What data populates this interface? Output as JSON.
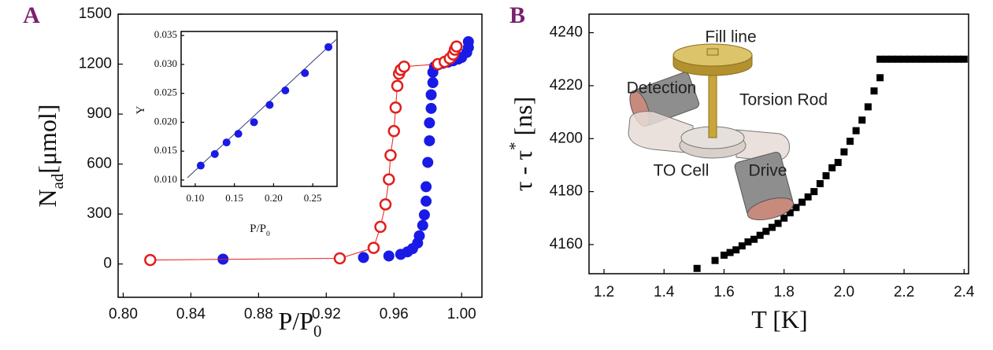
{
  "chart_data": [
    {
      "type": "scatter",
      "panel_label": "A",
      "xlabel_parts": [
        {
          "text": "P/P"
        },
        {
          "text": "0",
          "sub": true
        }
      ],
      "ylabel_parts": [
        {
          "text": "N"
        },
        {
          "text": "ad",
          "sub": true
        },
        {
          "text": "[μmol]"
        }
      ],
      "xlim": [
        0.797,
        1.012
      ],
      "ylim": [
        -200,
        1500
      ],
      "xticks": [
        {
          "value": 0.8,
          "label": "0.80"
        },
        0.84,
        0.88,
        0.92,
        0.96,
        {
          "value": 1,
          "label": "1.00"
        }
      ],
      "yticks": [
        0,
        300,
        600,
        900,
        1200,
        1500
      ],
      "series": [
        {
          "color": "#1a1ae6",
          "marker": "filled",
          "line": false,
          "x": [
            0.859,
            0.942,
            0.957,
            0.964,
            0.968,
            0.971,
            0.974,
            0.975,
            0.977,
            0.978,
            0.979,
            0.979,
            0.98,
            0.981,
            0.981,
            0.982,
            0.982,
            0.983,
            0.983,
            0.984,
            0.986,
            0.989,
            0.992,
            0.995,
            0.998,
            1.0,
            1.003,
            1.004,
            1.004
          ],
          "values": [
            29,
            39,
            48,
            58,
            73,
            92,
            126,
            169,
            232,
            295,
            377,
            464,
            610,
            740,
            847,
            934,
            1016,
            1089,
            1151,
            1185,
            1195,
            1205,
            1212,
            1220,
            1230,
            1240,
            1270,
            1300,
            1335
          ]
        },
        {
          "color": "#e0201c",
          "marker": "open",
          "line": true,
          "x": [
            0.816,
            0.928,
            0.948,
            0.952,
            0.955,
            0.957,
            0.958,
            0.96,
            0.961,
            0.962,
            0.963,
            0.964,
            0.966,
            0.986,
            0.99,
            0.993,
            0.995,
            0.996,
            0.997
          ],
          "values": [
            24,
            34,
            97,
            223,
            358,
            508,
            653,
            798,
            939,
            1069,
            1142,
            1166,
            1185,
            1200,
            1214,
            1234,
            1258,
            1287,
            1306
          ]
        }
      ]
    },
    {
      "type": "scatter",
      "xlabel_parts": [
        {
          "text": "P/P"
        },
        {
          "text": "0",
          "sub": true
        }
      ],
      "ylabel_parts": [
        {
          "text": "Y"
        }
      ],
      "xlim": [
        0.082,
        0.281
      ],
      "ylim": [
        0.0089,
        0.0357
      ],
      "xticks": [
        {
          "value": 0.1,
          "label": "0.10"
        },
        0.15,
        {
          "value": 0.2,
          "label": "0.20"
        },
        0.25
      ],
      "yticks": [
        {
          "value": 0.01,
          "label": "0.010"
        },
        {
          "value": 0.015,
          "label": "0.015"
        },
        {
          "value": 0.02,
          "label": "0.020"
        },
        {
          "value": 0.025,
          "label": "0.025"
        },
        {
          "value": 0.03,
          "label": "0.030"
        },
        {
          "value": 0.035,
          "label": "0.035"
        }
      ],
      "series": [
        {
          "color": "#333d7a",
          "marker": "none",
          "line": true,
          "x": [
            0.09,
            0.28
          ],
          "values": [
            0.0104,
            0.0343
          ]
        },
        {
          "color": "#1a1ae6",
          "marker": "filled",
          "line": false,
          "x": [
            0.107,
            0.125,
            0.14,
            0.155,
            0.175,
            0.195,
            0.215,
            0.24,
            0.27
          ],
          "values": [
            0.0125,
            0.0145,
            0.0165,
            0.018,
            0.02,
            0.023,
            0.0255,
            0.0285,
            0.033
          ]
        }
      ]
    },
    {
      "type": "scatter",
      "panel_label": "B",
      "xlabel_parts": [
        {
          "text": "T [K]"
        }
      ],
      "ylabel_parts": [
        {
          "text": "τ - τ"
        },
        {
          "text": "*",
          "sup": true
        },
        {
          "text": " [ns]"
        }
      ],
      "xlim": [
        1.15,
        2.415
      ],
      "ylim": [
        4149,
        4247
      ],
      "xticks": [
        1.2,
        1.4,
        1.6,
        1.8,
        {
          "value": 2,
          "label": "2.0"
        },
        2.2,
        2.4
      ],
      "yticks": [
        4160,
        4180,
        4200,
        4220,
        4240
      ],
      "annotations": [
        "Fill line",
        "Detection",
        "Torsion Rod",
        "TO Cell",
        "Drive"
      ],
      "series": [
        {
          "color": "#000000",
          "marker": "square",
          "line": false,
          "x": [
            1.51,
            1.57,
            1.6,
            1.62,
            1.64,
            1.66,
            1.68,
            1.7,
            1.72,
            1.74,
            1.76,
            1.78,
            1.8,
            1.82,
            1.84,
            1.86,
            1.88,
            1.9,
            1.92,
            1.94,
            1.96,
            1.98,
            2.0,
            2.02,
            2.04,
            2.06,
            2.08,
            2.1,
            2.12,
            2.12,
            2.14,
            2.16,
            2.18,
            2.2,
            2.22,
            2.24,
            2.26,
            2.28,
            2.3,
            2.32,
            2.34,
            2.36,
            2.38,
            2.4
          ],
          "values": [
            4151,
            4154,
            4156,
            4157,
            4158,
            4159.5,
            4161,
            4162,
            4163.5,
            4165,
            4166.5,
            4168,
            4170,
            4172,
            4174,
            4176,
            4178,
            4180,
            4183,
            4186,
            4189,
            4191,
            4195,
            4199,
            4203,
            4207,
            4212,
            4218,
            4223,
            4230,
            4230,
            4230,
            4230,
            4230,
            4230,
            4230,
            4230,
            4230,
            4230,
            4230,
            4230,
            4230,
            4230,
            4230
          ]
        }
      ]
    }
  ]
}
